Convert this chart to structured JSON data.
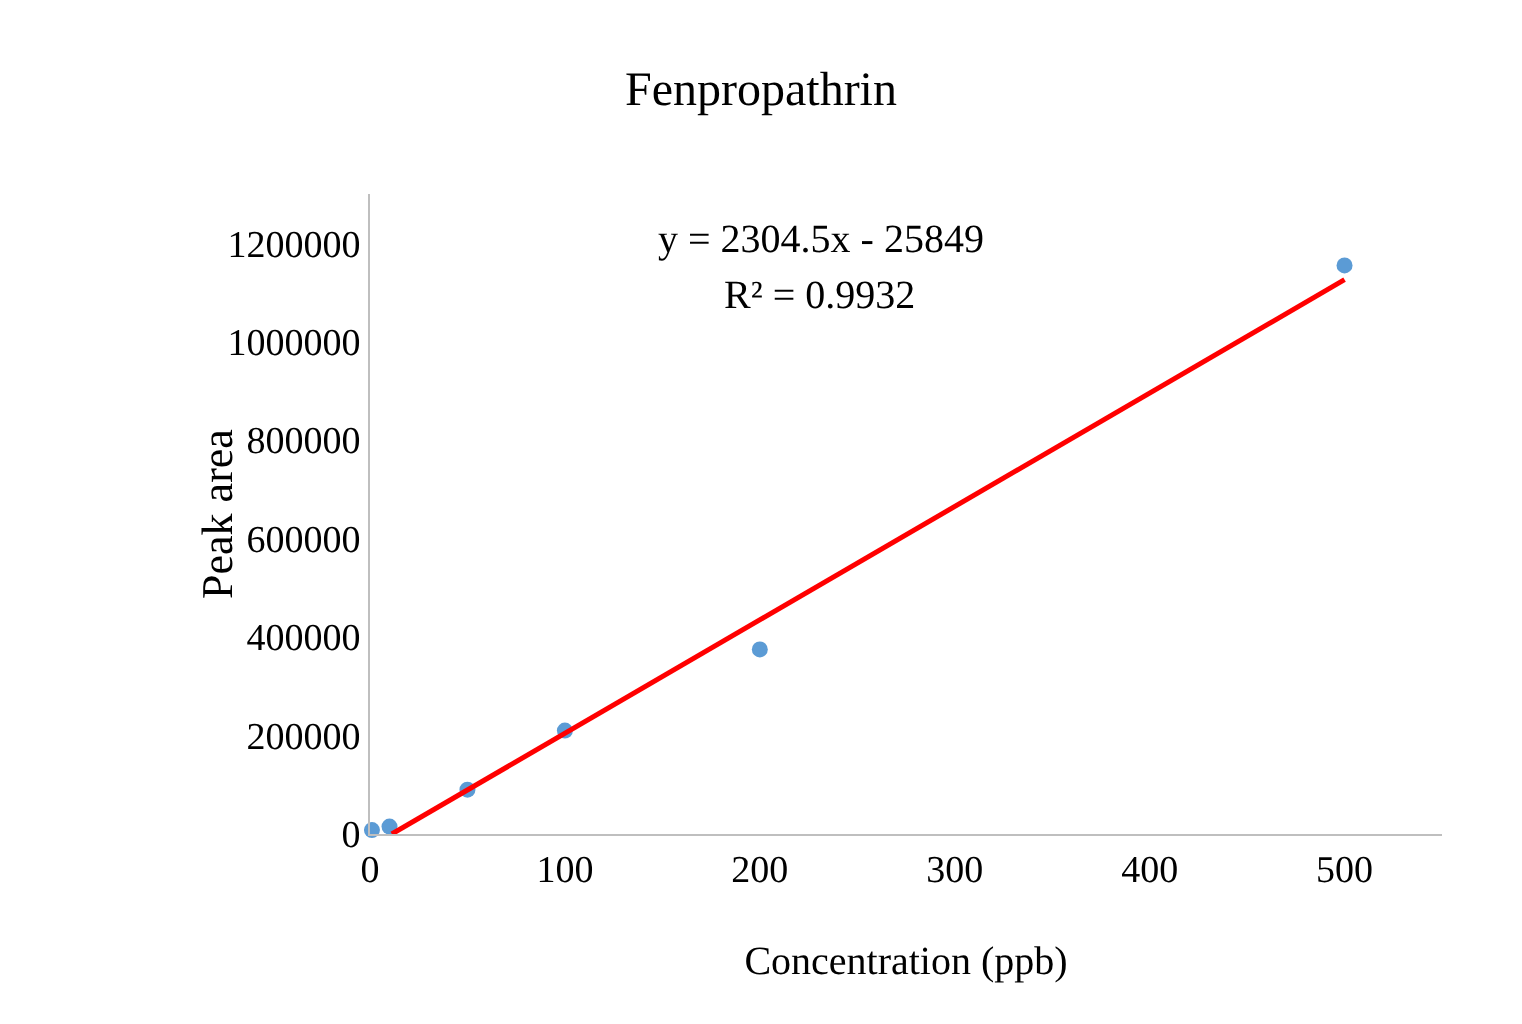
{
  "chart_data": {
    "type": "scatter",
    "title": "Fenpropathrin",
    "xlabel": "Concentration (ppb)",
    "ylabel": "Peak area",
    "annotations": [
      "y = 2304.5x - 25849",
      "R² = 0.9932"
    ],
    "series": [
      {
        "color": "#5b9bd5",
        "marker": "circle",
        "x": [
          1,
          10,
          50,
          100,
          200,
          500
        ],
        "values": [
          8000,
          15000,
          90000,
          210000,
          375000,
          1155000
        ]
      },
      {
        "type": "line",
        "color": "#ff0000",
        "marker": "none",
        "x": [
          11.2,
          500
        ],
        "values": [
          0,
          1126000
        ]
      }
    ],
    "xlim": [
      0,
      550
    ],
    "xticks": [
      0,
      100,
      200,
      300,
      400,
      500
    ],
    "ylim": [
      0,
      1300000
    ],
    "yticks": [
      0,
      200000,
      400000,
      600000,
      800000,
      1000000,
      1200000
    ],
    "grid": false
  }
}
